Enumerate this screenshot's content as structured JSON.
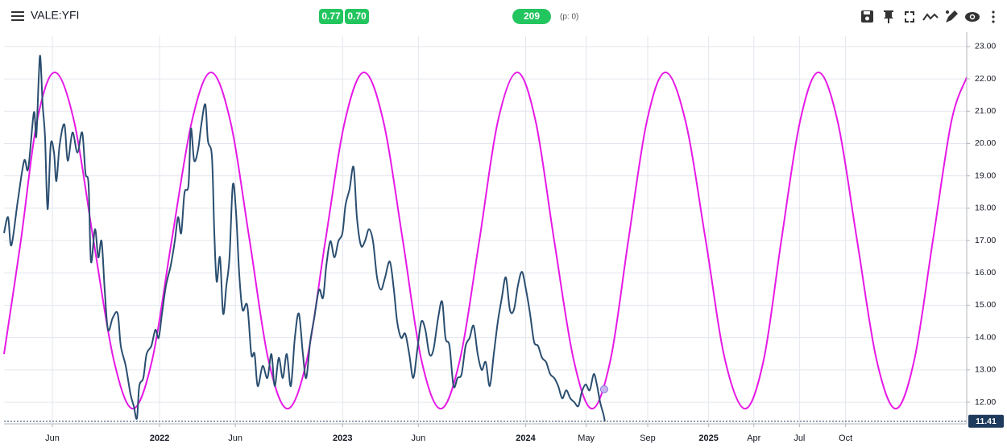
{
  "toolbar": {
    "symbol": "VALE:YFI",
    "badges": [
      "0.77",
      "0.70"
    ],
    "count": "209",
    "status": "(p: 0)"
  },
  "chart_data": {
    "type": "line",
    "xlim": [
      2021.15,
      2026.41
    ],
    "ylim": [
      11.33,
      23.32
    ],
    "xticks": [
      {
        "value": 2021.414,
        "label": "Jun"
      },
      2022,
      {
        "value": 2022.414,
        "label": "Jun"
      },
      2023,
      {
        "value": 2023.414,
        "label": "Jun"
      },
      2024,
      {
        "value": 2024.331,
        "label": "May"
      },
      {
        "value": 2024.667,
        "label": "Sep"
      },
      2025,
      {
        "value": 2025.247,
        "label": "Apr"
      },
      {
        "value": 2025.496,
        "label": "Jul"
      },
      {
        "value": 2025.748,
        "label": "Oct"
      }
    ],
    "yticks": [
      {
        "value": 12,
        "label": "12.00"
      },
      {
        "value": 13,
        "label": "13.00"
      },
      {
        "value": 14,
        "label": "14.00"
      },
      {
        "value": 15,
        "label": "15.00"
      },
      {
        "value": 16,
        "label": "16.00"
      },
      {
        "value": 17,
        "label": "17.00"
      },
      {
        "value": 18,
        "label": "18.00"
      },
      {
        "value": 19,
        "label": "19.00"
      },
      {
        "value": 20,
        "label": "20.00"
      },
      {
        "value": 21,
        "label": "21.00"
      },
      {
        "value": 22,
        "label": "22.00"
      },
      {
        "value": 23,
        "label": "23.00"
      }
    ],
    "grid": true,
    "series": [
      {
        "color": "#e619e6",
        "x": [
          2021.15,
          2021.242,
          2021.33,
          2021.427,
          2021.533,
          2021.639,
          2021.749,
          2021.854,
          2021.96,
          2022.066,
          2022.176,
          2022.281,
          2022.387,
          2022.492,
          2022.594,
          2022.699,
          2022.805,
          2022.906,
          2023.012,
          2023.117,
          2023.223,
          2023.329,
          2023.43,
          2023.536,
          2023.641,
          2023.747,
          2023.848,
          2023.954,
          2024.055,
          2024.156,
          2024.262,
          2024.363,
          2024.464,
          2024.561,
          2024.662,
          2024.764,
          2024.874,
          2024.984,
          2025.089,
          2025.199,
          2025.301,
          2025.397,
          2025.499,
          2025.6,
          2025.705,
          2025.811,
          2025.917,
          2026.022,
          2026.124,
          2026.225,
          2026.326,
          2026.41
        ],
        "values": [
          13.49,
          17,
          20.68,
          22.2,
          20.68,
          17,
          13.32,
          11.8,
          13.32,
          17,
          20.68,
          22.2,
          20.68,
          17,
          13.32,
          11.8,
          13.32,
          17,
          20.68,
          22.2,
          20.68,
          17,
          13.32,
          11.8,
          13.32,
          17,
          20.68,
          22.2,
          20.68,
          17,
          13.32,
          11.8,
          13.32,
          17,
          20.68,
          22.2,
          20.68,
          17,
          13.32,
          11.8,
          13.32,
          17,
          20.68,
          22.2,
          20.68,
          17,
          13.32,
          11.8,
          13.32,
          17,
          20.68,
          22.05
        ]
      },
      {
        "color": "#2a4e70",
        "x": [
          2021.15,
          2021.172,
          2021.19,
          2021.225,
          2021.26,
          2021.282,
          2021.313,
          2021.326,
          2021.339,
          2021.348,
          2021.361,
          2021.374,
          2021.388,
          2021.405,
          2021.423,
          2021.436,
          2021.454,
          2021.48,
          2021.498,
          2021.524,
          2021.551,
          2021.577,
          2021.595,
          2021.612,
          2021.625,
          2021.647,
          2021.665,
          2021.683,
          2021.7,
          2021.718,
          2021.744,
          2021.771,
          2021.788,
          2021.815,
          2021.841,
          2021.859,
          2021.876,
          2021.889,
          2021.911,
          2021.929,
          2021.955,
          2021.977,
          2021.995,
          2022.013,
          2022.035,
          2022.061,
          2022.083,
          2022.101,
          2022.118,
          2022.136,
          2022.158,
          2022.171,
          2022.189,
          2022.211,
          2022.228,
          2022.25,
          2022.264,
          2022.286,
          2022.299,
          2022.312,
          2022.33,
          2022.347,
          2022.365,
          2022.382,
          2022.4,
          2022.418,
          2022.435,
          2022.453,
          2022.479,
          2022.501,
          2022.519,
          2022.536,
          2022.563,
          2022.589,
          2022.611,
          2022.629,
          2022.651,
          2022.673,
          2022.695,
          2022.717,
          2022.739,
          2022.761,
          2022.783,
          2022.801,
          2022.823,
          2022.845,
          2022.871,
          2022.893,
          2022.911,
          2022.933,
          2022.955,
          2022.977,
          2022.999,
          2023.016,
          2023.038,
          2023.06,
          2023.078,
          2023.1,
          2023.122,
          2023.144,
          2023.166,
          2023.188,
          2023.21,
          2023.232,
          2023.258,
          2023.28,
          2023.298,
          2023.32,
          2023.342,
          2023.364,
          2023.386,
          2023.408,
          2023.43,
          2023.452,
          2023.474,
          2023.496,
          2023.522,
          2023.544,
          2023.562,
          2023.584,
          2023.606,
          2023.628,
          2023.65,
          2023.672,
          2023.694,
          2023.716,
          2023.738,
          2023.76,
          2023.782,
          2023.804,
          2023.826,
          2023.848,
          2023.87,
          2023.892,
          2023.914,
          2023.936,
          2023.958,
          2023.98,
          2024.002,
          2024.024,
          2024.046,
          2024.068,
          2024.09,
          2024.112,
          2024.134,
          2024.156,
          2024.178,
          2024.2,
          2024.222,
          2024.244,
          2024.266,
          2024.288,
          2024.306,
          2024.328,
          2024.35,
          2024.372,
          2024.389,
          2024.407,
          2024.425,
          2024.433
        ],
        "values": [
          17.23,
          17.72,
          16.85,
          18.22,
          19.47,
          19.22,
          20.96,
          20.21,
          21.95,
          22.7,
          21.21,
          20.21,
          17.97,
          19.96,
          19.72,
          18.84,
          19.96,
          20.59,
          19.47,
          20.34,
          19.72,
          20.34,
          19.09,
          18.72,
          16.35,
          17.35,
          16.48,
          16.98,
          15.48,
          14.24,
          14.61,
          14.74,
          13.74,
          13.12,
          12.25,
          11.88,
          11.5,
          12.5,
          12.75,
          13.49,
          13.74,
          14.24,
          13.99,
          14.74,
          15.61,
          16.23,
          16.98,
          17.72,
          17.23,
          18.47,
          18.72,
          20.46,
          19.47,
          19.84,
          20.59,
          21.21,
          20.09,
          19.59,
          17.23,
          15.73,
          16.48,
          14.74,
          15.61,
          16.48,
          18.72,
          17.85,
          15.98,
          14.86,
          14.99,
          13.49,
          13.49,
          12.5,
          13.12,
          12.75,
          13.49,
          12.5,
          13.37,
          12.75,
          13.49,
          12.5,
          13.99,
          14.74,
          13.49,
          12.75,
          13.87,
          14.61,
          15.48,
          15.23,
          16.23,
          16.98,
          16.48,
          16.98,
          17.23,
          18.1,
          18.59,
          19.27,
          17.72,
          16.85,
          16.98,
          17.35,
          16.98,
          15.86,
          15.48,
          15.86,
          16.35,
          15.48,
          14.49,
          13.99,
          14.12,
          13.49,
          12.75,
          13.62,
          14.49,
          14.24,
          13.49,
          13.62,
          14.61,
          15.11,
          13.99,
          13.74,
          12.5,
          12.75,
          12.87,
          13.74,
          13.99,
          14.36,
          13.49,
          13.0,
          13.24,
          12.5,
          13.49,
          14.49,
          15.23,
          15.86,
          14.86,
          14.86,
          15.61,
          16.03,
          15.48,
          14.74,
          13.87,
          13.74,
          13.37,
          13.24,
          12.87,
          12.75,
          12.5,
          12.12,
          12.37,
          12.12,
          12.0,
          11.88,
          12.3,
          12.55,
          12.37,
          12.87,
          12.55,
          12.0,
          11.63,
          11.41
        ]
      }
    ],
    "marker": {
      "x": 2024.429,
      "value": 12.4,
      "color": "#c8b6f2"
    },
    "last_price": {
      "value": 11.41,
      "label": "11.41",
      "color": "#1e3a5c"
    }
  }
}
